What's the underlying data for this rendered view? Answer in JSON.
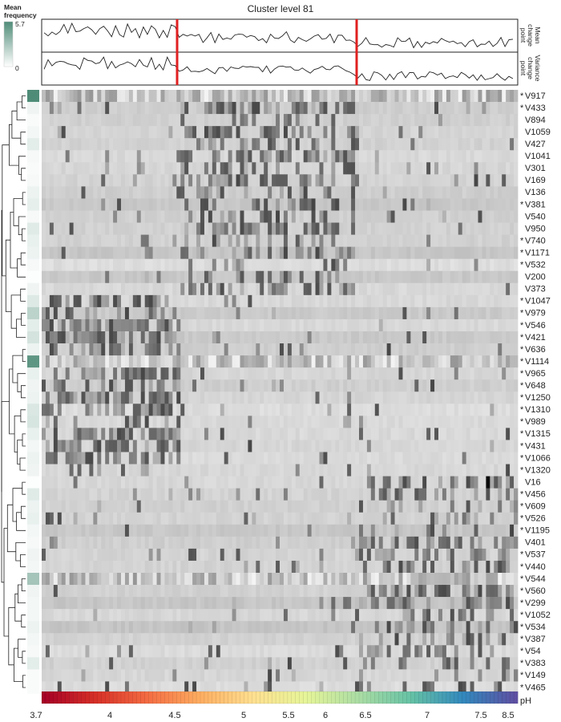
{
  "chart_data": {
    "type": "heatmap",
    "title": "Cluster level 81",
    "legend": {
      "title_line1": "Mean",
      "title_line2": "frequency",
      "max_label": "5.7",
      "min_label": "0",
      "max": 5.7,
      "min": 0,
      "color_high": "#4f8c78",
      "color_low": "#ffffff"
    },
    "rows": [
      "V917",
      "V433",
      "V894",
      "V1059",
      "V427",
      "V1041",
      "V301",
      "V169",
      "V136",
      "V381",
      "V540",
      "V950",
      "V740",
      "V1171",
      "V532",
      "V200",
      "V373",
      "V1047",
      "V979",
      "V546",
      "V421",
      "V636",
      "V1114",
      "V965",
      "V648",
      "V1250",
      "V1310",
      "V989",
      "V1315",
      "V431",
      "V1066",
      "V1320",
      "V16",
      "V456",
      "V609",
      "V526",
      "V1195",
      "V401",
      "V537",
      "V440",
      "V544",
      "V560",
      "V299",
      "V1052",
      "V534",
      "V387",
      "V54",
      "V383",
      "V149",
      "V465"
    ],
    "row_marked": [
      true,
      true,
      false,
      false,
      false,
      false,
      false,
      false,
      false,
      true,
      false,
      false,
      true,
      true,
      true,
      false,
      false,
      true,
      true,
      true,
      true,
      true,
      true,
      true,
      true,
      true,
      true,
      true,
      true,
      true,
      true,
      true,
      false,
      true,
      true,
      true,
      true,
      false,
      true,
      true,
      true,
      true,
      true,
      true,
      true,
      true,
      true,
      true,
      true,
      true
    ],
    "marker_symbol": "*",
    "row_mean_frequency": [
      5.7,
      0.5,
      0.2,
      0.4,
      0.9,
      0.3,
      0.2,
      0.3,
      0.6,
      0.8,
      0.3,
      1.0,
      0.7,
      0.6,
      0.3,
      0.1,
      0.5,
      1.1,
      2.2,
      0.9,
      1.4,
      0.6,
      5.2,
      0.7,
      0.5,
      0.6,
      1.2,
      1.3,
      0.7,
      0.4,
      0.6,
      0.5,
      0.1,
      1.0,
      0.6,
      0.7,
      0.4,
      0.3,
      0.5,
      0.4,
      2.9,
      0.5,
      0.4,
      0.4,
      0.6,
      0.4,
      0.3,
      0.9,
      0.2,
      0.2
    ],
    "mean_track_label": [
      "Mean",
      "change",
      "point"
    ],
    "variance_track_label": [
      "Variance",
      "change",
      "point"
    ],
    "change_points_ph": [
      4.5,
      6.4
    ],
    "change_point_color": "#e02020",
    "axis": {
      "label": "pH",
      "ticks": [
        "3.7",
        "4",
        "4.5",
        "5",
        "5.5",
        "6",
        "6.5",
        "7",
        "7.5",
        "8.5"
      ],
      "tick_values": [
        3.7,
        4,
        4.5,
        5,
        5.5,
        6,
        6.5,
        7,
        7.5,
        8.5
      ],
      "range": [
        3.7,
        8.5
      ]
    },
    "ph_colormap": [
      "#a50026",
      "#d73027",
      "#f46d43",
      "#fdae61",
      "#fee090",
      "#e6f598",
      "#abdda4",
      "#66c2a5",
      "#3288bd",
      "#5e4fa2"
    ],
    "samples": 120,
    "grid": false
  }
}
